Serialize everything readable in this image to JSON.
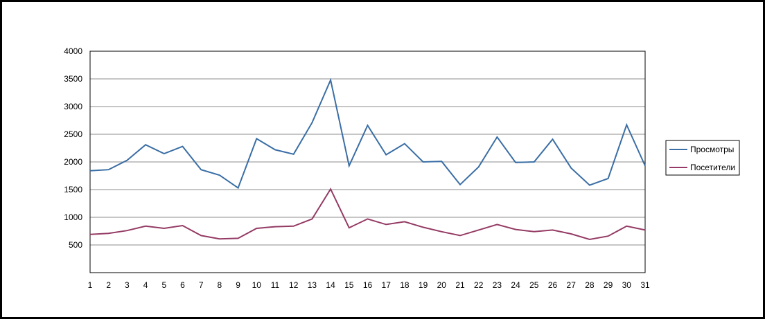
{
  "chart_data": {
    "type": "line",
    "title": "",
    "xlabel": "",
    "ylabel": "",
    "x": [
      1,
      2,
      3,
      4,
      5,
      6,
      7,
      8,
      9,
      10,
      11,
      12,
      13,
      14,
      15,
      16,
      17,
      18,
      19,
      20,
      21,
      22,
      23,
      24,
      25,
      26,
      27,
      28,
      29,
      30,
      31
    ],
    "ylim": [
      0,
      4000
    ],
    "yticks": [
      500,
      1000,
      1500,
      2000,
      2500,
      3000,
      3500,
      4000
    ],
    "grid": true,
    "legend": "right",
    "series": [
      {
        "name": "Просмотры",
        "color": "#3A6EA5",
        "values": [
          1840,
          1860,
          2030,
          2310,
          2150,
          2280,
          1860,
          1760,
          1530,
          2420,
          2220,
          2140,
          2710,
          3480,
          1930,
          2660,
          2130,
          2330,
          2000,
          2010,
          1590,
          1910,
          2450,
          1990,
          2000,
          2410,
          1890,
          1580,
          1700,
          2670,
          1930
        ]
      },
      {
        "name": "Посетители",
        "color": "#943A64",
        "values": [
          690,
          710,
          760,
          840,
          800,
          850,
          670,
          610,
          620,
          800,
          830,
          840,
          970,
          1510,
          810,
          970,
          870,
          920,
          820,
          740,
          670,
          770,
          870,
          780,
          740,
          770,
          700,
          600,
          660,
          840,
          770
        ]
      }
    ]
  }
}
